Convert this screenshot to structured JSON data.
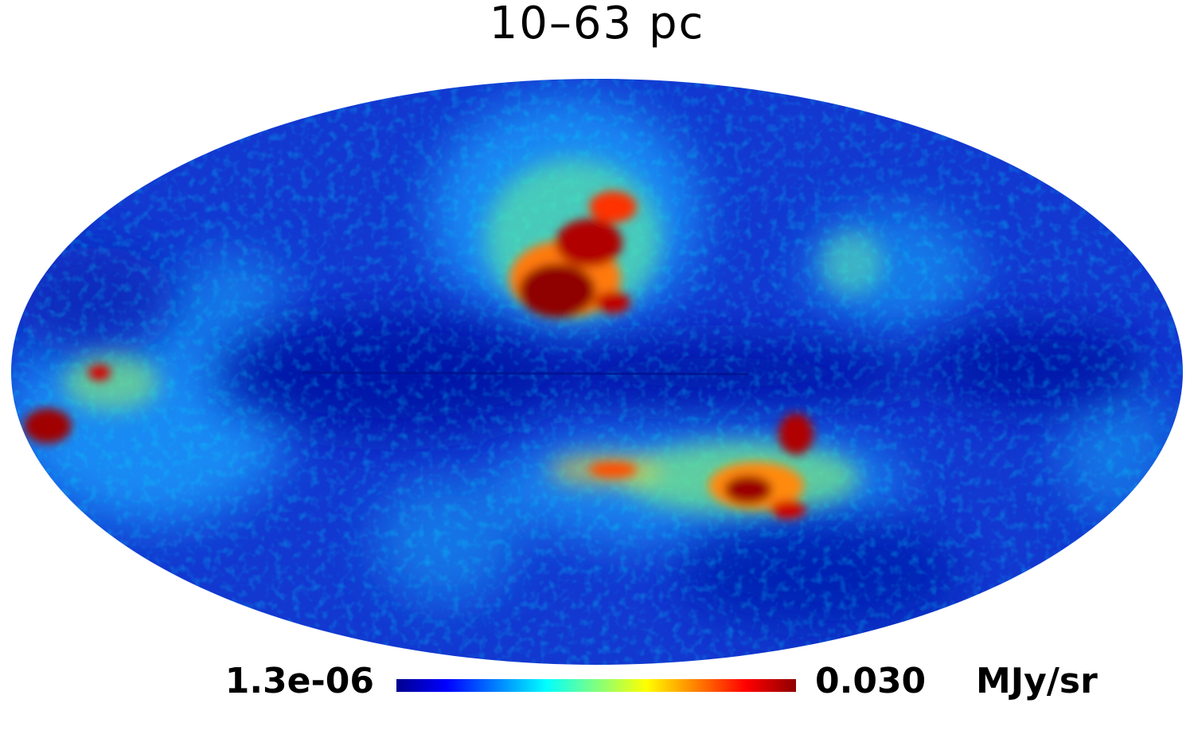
{
  "title": "10–63 pc",
  "colorbar": {
    "min_label": "1.3e-06",
    "max_label": "0.030",
    "unit": "MJy/sr",
    "stops": [
      "#00008f",
      "#0000ff",
      "#0080ff",
      "#00ffff",
      "#80ff80",
      "#ffff00",
      "#ff8000",
      "#ff0000",
      "#8f0000"
    ]
  },
  "map": {
    "projection": "Mollweide",
    "background_color": "#1238d0",
    "colormap": "jet",
    "features": [
      {
        "name": "northern-lobe-bright-region",
        "level": "high"
      },
      {
        "name": "southern-arc-bright-region",
        "level": "high"
      },
      {
        "name": "western-edge-bright-region",
        "level": "high"
      },
      {
        "name": "galactic-plane-dark-band",
        "level": "low"
      }
    ]
  }
}
